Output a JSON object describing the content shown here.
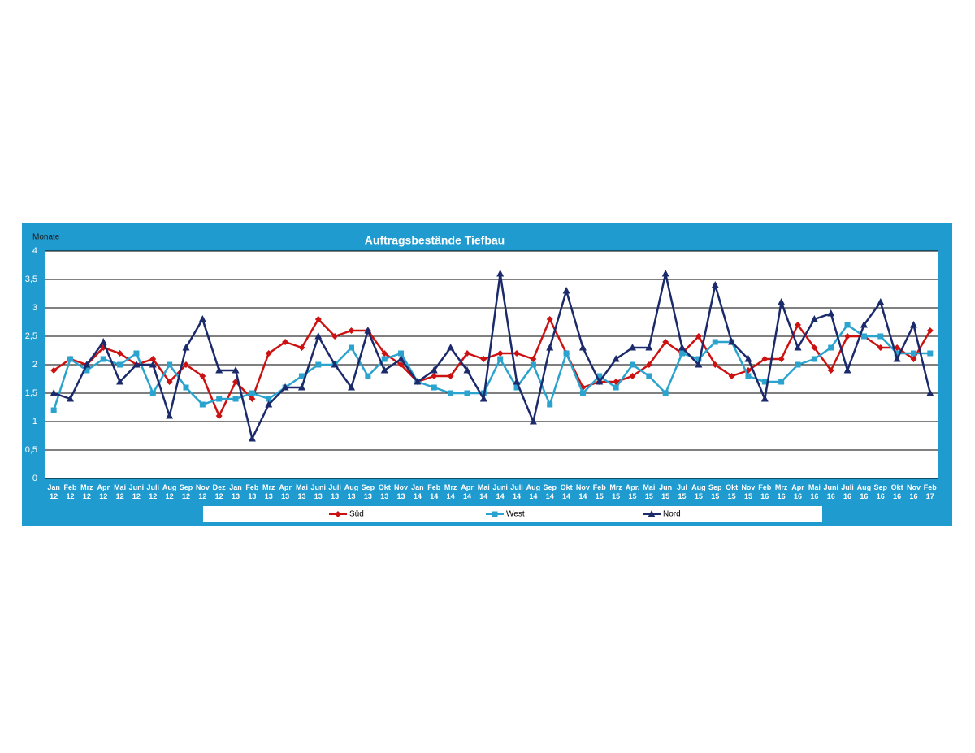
{
  "chart_data": {
    "type": "line",
    "title": "Auftragsbestände Tiefbau",
    "y_label": "Monate",
    "categories": [
      "Jan 12",
      "Feb 12",
      "Mrz 12",
      "Apr 12",
      "Mai 12",
      "Juni 12",
      "Juli 12",
      "Aug 12",
      "Sep 12",
      "Nov 12",
      "Dez 12",
      "Jan 13",
      "Feb 13",
      "Mrz 13",
      "Apr 13",
      "Mai 13",
      "Juni 13",
      "Juli 13",
      "Aug 13",
      "Sep 13",
      "Okt 13",
      "Nov 13",
      "Jan 14",
      "Feb 14",
      "Mrz 14",
      "Apr 14",
      "Mai 14",
      "Juni 14",
      "Juli 14",
      "Aug 14",
      "Sep 14",
      "Okt 14",
      "Nov 14",
      "Feb 15",
      "Mrz 15",
      "Apr. 15",
      "Mai 15",
      "Jun 15",
      "Jul 15",
      "Aug 15",
      "Sep 15",
      "Okt 15",
      "Nov 15",
      "Feb 16",
      "Mrz 16",
      "Apr 16",
      "Mai 16",
      "Juni 16",
      "Juli 16",
      "Aug 16",
      "Sep 16",
      "Okt 16",
      "Nov 16",
      "Feb 17"
    ],
    "series": [
      {
        "name": "Süd",
        "color": "#cc1111",
        "marker": "diamond",
        "values": [
          1.9,
          2.1,
          2.0,
          2.3,
          2.2,
          2.0,
          2.1,
          1.7,
          2.0,
          1.8,
          1.1,
          1.7,
          1.4,
          2.2,
          2.4,
          2.3,
          2.8,
          2.5,
          2.6,
          2.6,
          2.2,
          2.0,
          1.7,
          1.8,
          1.8,
          2.2,
          2.1,
          2.2,
          2.2,
          2.1,
          2.8,
          2.2,
          1.6,
          1.7,
          1.7,
          1.8,
          2.0,
          2.4,
          2.2,
          2.5,
          2.0,
          1.8,
          1.9,
          2.1,
          2.1,
          2.7,
          2.3,
          1.9,
          2.5,
          2.5,
          2.3,
          2.3,
          2.1,
          2.6
        ]
      },
      {
        "name": "West",
        "color": "#2aa3cf",
        "marker": "square",
        "values": [
          1.2,
          2.1,
          1.9,
          2.1,
          2.0,
          2.2,
          1.5,
          2.0,
          1.6,
          1.3,
          1.4,
          1.4,
          1.5,
          1.4,
          1.6,
          1.8,
          2.0,
          2.0,
          2.3,
          1.8,
          2.1,
          2.2,
          1.7,
          1.6,
          1.5,
          1.5,
          1.5,
          2.1,
          1.6,
          2.0,
          1.3,
          2.2,
          1.5,
          1.8,
          1.6,
          2.0,
          1.8,
          1.5,
          2.2,
          2.1,
          2.4,
          2.4,
          1.8,
          1.7,
          1.7,
          2.0,
          2.1,
          2.3,
          2.7,
          2.5,
          2.5,
          2.2,
          2.2,
          2.2
        ]
      },
      {
        "name": "Nord",
        "color": "#1b2a6b",
        "marker": "triangle",
        "values": [
          1.5,
          1.4,
          2.0,
          2.4,
          1.7,
          2.0,
          2.0,
          1.1,
          2.3,
          2.8,
          1.9,
          1.9,
          0.7,
          1.3,
          1.6,
          1.6,
          2.5,
          2.0,
          1.6,
          2.6,
          1.9,
          2.1,
          1.7,
          1.9,
          2.3,
          1.9,
          1.4,
          3.6,
          1.7,
          1.0,
          2.3,
          3.3,
          2.3,
          1.7,
          2.1,
          2.3,
          2.3,
          3.6,
          2.3,
          2.0,
          3.4,
          2.4,
          2.1,
          1.4,
          3.1,
          2.3,
          2.8,
          2.9,
          1.9,
          2.7,
          3.1,
          2.1,
          2.7,
          1.5
        ]
      }
    ],
    "ylim": [
      0,
      4
    ],
    "yticks": [
      0,
      {
        "value": 0.5,
        "label": "0,5"
      },
      1,
      {
        "value": 1.5,
        "label": "1,5"
      },
      2,
      {
        "value": 2.5,
        "label": "2,5"
      },
      3,
      {
        "value": 3.5,
        "label": "3,5"
      },
      4
    ],
    "grid": true,
    "legend": "bottom"
  }
}
